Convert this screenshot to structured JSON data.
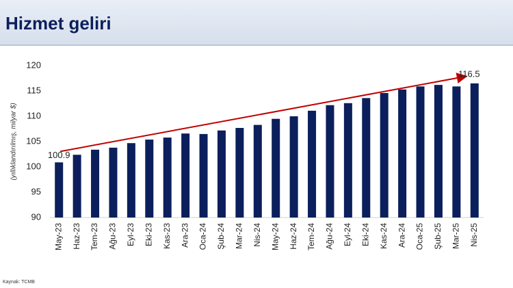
{
  "chart_data": {
    "type": "bar",
    "title": "Hizmet geliri",
    "y_label": "(yıllıklandırılmış, milyar $)",
    "source": "Kaynak: TCMB",
    "categories": [
      "May-23",
      "Haz-23",
      "Tem-23",
      "Ağu-23",
      "Eyl-23",
      "Eki-23",
      "Kas-23",
      "Ara-23",
      "Oca-24",
      "Şub-24",
      "Mar-24",
      "Nis-24",
      "May-24",
      "Haz-24",
      "Tem-24",
      "Ağu-24",
      "Eyl-24",
      "Eki-24",
      "Kas-24",
      "Ara-24",
      "Oca-25",
      "Şub-25",
      "Mar-25",
      "Nis-25"
    ],
    "values": [
      100.9,
      102.4,
      103.4,
      103.8,
      104.7,
      105.4,
      105.8,
      106.6,
      106.5,
      107.2,
      107.7,
      108.3,
      109.5,
      110.0,
      111.1,
      112.2,
      112.6,
      113.6,
      114.6,
      115.3,
      115.9,
      116.2,
      115.9,
      116.5
    ],
    "color": "#0b1f5c",
    "trend_color": "#c00000",
    "ylim": [
      90,
      120
    ],
    "yticks": [
      90,
      95,
      100,
      105,
      110,
      115,
      120
    ],
    "grid": false
  }
}
